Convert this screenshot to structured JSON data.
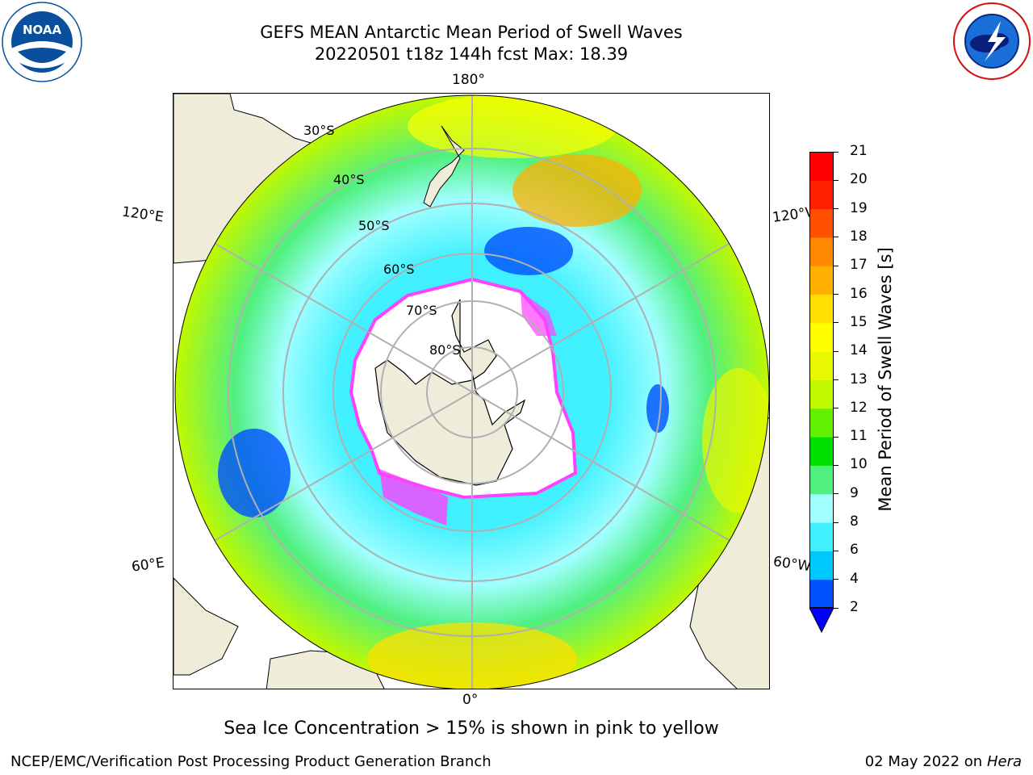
{
  "header": {
    "title_line1": "GEFS MEAN Antarctic Mean Period of Swell Waves",
    "title_line2": "20220501 t18z 144h fcst   Max: 18.39"
  },
  "logos": {
    "left": {
      "text": "NOAA",
      "icon": "noaa-logo-icon"
    },
    "right": {
      "icon": "national-weather-service-logo-icon"
    }
  },
  "map": {
    "projection": "south-polar-stereographic",
    "longitude_labels": {
      "top": "180°",
      "bottom": "0°",
      "left_upper": "120°E",
      "left_lower": "60°E",
      "right_upper": "120°W",
      "right_lower": "60°W"
    },
    "latitude_labels": [
      "30°S",
      "40°S",
      "50°S",
      "60°S",
      "70°S",
      "80°S"
    ],
    "colors": {
      "land": "#efedda",
      "sea_ice": "#ffffff",
      "ice_edge": "#ff40ff",
      "gridline": "#b0b0b0"
    }
  },
  "colorbar": {
    "label": "Mean Period of Swell Waves [s]",
    "ticks": [
      "2",
      "4",
      "6",
      "8",
      "9",
      "10",
      "11",
      "12",
      "13",
      "14",
      "15",
      "16",
      "17",
      "18",
      "19",
      "20",
      "21"
    ],
    "colors": [
      "#0050ff",
      "#00c8ff",
      "#40f0ff",
      "#a0ffff",
      "#50f080",
      "#00e000",
      "#60f000",
      "#c0f800",
      "#e8f800",
      "#ffff00",
      "#ffe000",
      "#ffb000",
      "#ff8800",
      "#ff5000",
      "#ff2000",
      "#ff0000"
    ],
    "extend_color": "#0000ff"
  },
  "note": "Sea Ice Concentration > 15% is shown in pink to yellow",
  "footer": {
    "left": "NCEP/EMC/Verification Post Processing Product Generation Branch",
    "right_date": "02 May 2022 on",
    "right_machine": "Hera"
  }
}
